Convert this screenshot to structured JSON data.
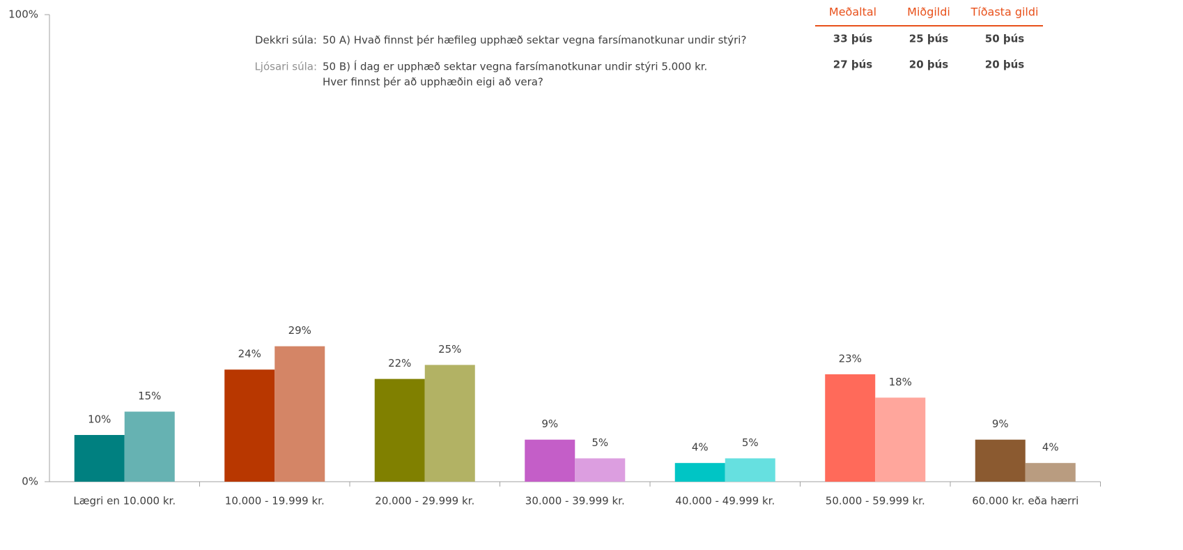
{
  "chart_data": {
    "type": "bar",
    "categories": [
      "Lægri en 10.000 kr.",
      "10.000 - 19.999 kr.",
      "20.000 - 29.999 kr.",
      "30.000 - 39.999 kr.",
      "40.000 - 49.999 kr.",
      "50.000 - 59.999 kr.",
      "60.000 kr. eða hærri"
    ],
    "series": [
      {
        "name": "Dekkri súla:",
        "question": [
          "50 A) Hvað finnst þér hæfileg upphæð sektar vegna farsímanotkunar undir stýri?"
        ],
        "color": [
          "#008080",
          "#b83700",
          "#808000",
          "#c45ec8",
          "#00c5c5",
          "#ff6a5a",
          "#8b5a30"
        ],
        "values": [
          10,
          24,
          22,
          9,
          4,
          23,
          9
        ],
        "value_labels": [
          "10%",
          "24%",
          "22%",
          "9%",
          "4%",
          "23%",
          "9%"
        ]
      },
      {
        "name": "Ljósari súla:",
        "question": [
          "50 B) Í dag er upphæð sektar vegna farsímanotkunar undir stýri 5.000 kr.",
          "Hver finnst þér að upphæðin eigi að vera?"
        ],
        "color": [
          "#66b2b2",
          "#d48566",
          "#b2b264",
          "#dc9ee0",
          "#66e0e0",
          "#ffa69c",
          "#b99c80"
        ],
        "values": [
          15,
          29,
          25,
          5,
          5,
          18,
          4
        ],
        "value_labels": [
          "15%",
          "29%",
          "25%",
          "5%",
          "5%",
          "18%",
          "4%"
        ]
      }
    ],
    "ylim": [
      0,
      100
    ],
    "yticks": [
      {
        "value": 0,
        "label": "0%"
      },
      {
        "value": 100,
        "label": "100%"
      }
    ],
    "stats_table": {
      "columns": [
        "Meðaltal",
        "Miðgildi",
        "Tíðasta gildi"
      ],
      "rows": [
        [
          "33 þús",
          "25 þús",
          "50 þús"
        ],
        [
          "27 þús",
          "20 þús",
          "20 þús"
        ]
      ]
    }
  }
}
